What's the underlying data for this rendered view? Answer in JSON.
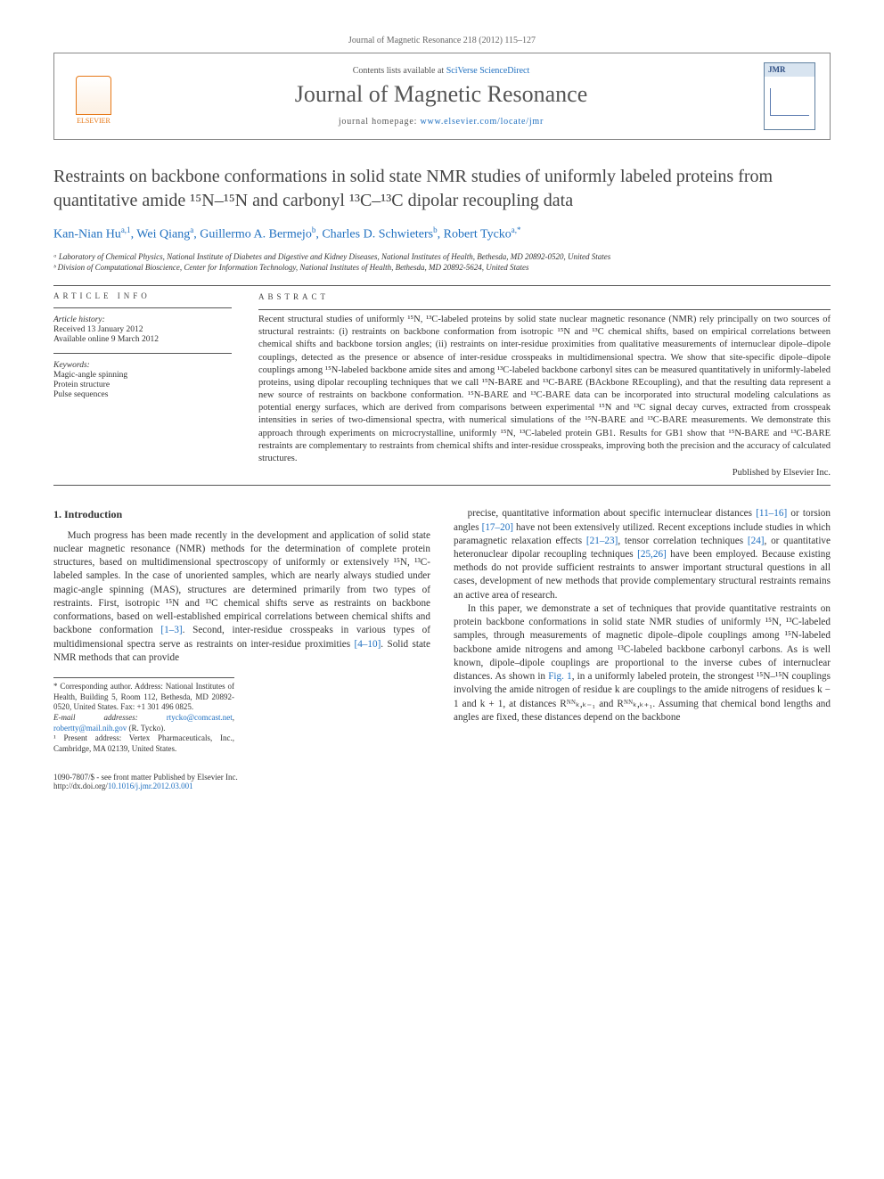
{
  "citation": "Journal of Magnetic Resonance 218 (2012) 115–127",
  "header": {
    "contents_prefix": "Contents lists available at ",
    "contents_link": "SciVerse ScienceDirect",
    "journal": "Journal of Magnetic Resonance",
    "homepage_prefix": "journal homepage: ",
    "homepage_link": "www.elsevier.com/locate/jmr",
    "publisher_label": "ELSEVIER"
  },
  "article": {
    "title": "Restraints on backbone conformations in solid state NMR studies of uniformly labeled proteins from quantitative amide ¹⁵N–¹⁵N and carbonyl ¹³C–¹³C dipolar recoupling data",
    "authors_html": "Kan-Nian Hu<sup>a,1</sup>, Wei Qiang<sup>a</sup>, Guillermo A. Bermejo<sup>b</sup>, Charles D. Schwieters<sup>b</sup>, Robert Tycko<sup>a,*</sup>",
    "affiliations": [
      "ᵃ Laboratory of Chemical Physics, National Institute of Diabetes and Digestive and Kidney Diseases, National Institutes of Health, Bethesda, MD 20892-0520, United States",
      "ᵇ Division of Computational Bioscience, Center for Information Technology, National Institutes of Health, Bethesda, MD 20892-5624, United States"
    ]
  },
  "info": {
    "label": "ARTICLE INFO",
    "history_label": "Article history:",
    "received": "Received 13 January 2012",
    "online": "Available online 9 March 2012",
    "keywords_label": "Keywords:",
    "keywords": [
      "Magic-angle spinning",
      "Protein structure",
      "Pulse sequences"
    ]
  },
  "abstract": {
    "label": "ABSTRACT",
    "text": "Recent structural studies of uniformly ¹⁵N, ¹³C-labeled proteins by solid state nuclear magnetic resonance (NMR) rely principally on two sources of structural restraints: (i) restraints on backbone conformation from isotropic ¹⁵N and ¹³C chemical shifts, based on empirical correlations between chemical shifts and backbone torsion angles; (ii) restraints on inter-residue proximities from qualitative measurements of internuclear dipole–dipole couplings, detected as the presence or absence of inter-residue crosspeaks in multidimensional spectra. We show that site-specific dipole–dipole couplings among ¹⁵N-labeled backbone amide sites and among ¹³C-labeled backbone carbonyl sites can be measured quantitatively in uniformly-labeled proteins, using dipolar recoupling techniques that we call ¹⁵N-BARE and ¹³C-BARE (BAckbone REcoupling), and that the resulting data represent a new source of restraints on backbone conformation. ¹⁵N-BARE and ¹³C-BARE data can be incorporated into structural modeling calculations as potential energy surfaces, which are derived from comparisons between experimental ¹⁵N and ¹³C signal decay curves, extracted from crosspeak intensities in series of two-dimensional spectra, with numerical simulations of the ¹⁵N-BARE and ¹³C-BARE measurements. We demonstrate this approach through experiments on microcrystalline, uniformly ¹⁵N, ¹³C-labeled protein GB1. Results for GB1 show that ¹⁵N-BARE and ¹³C-BARE restraints are complementary to restraints from chemical shifts and inter-residue crosspeaks, improving both the precision and the accuracy of calculated structures.",
    "publisher": "Published by Elsevier Inc."
  },
  "body": {
    "section_heading": "1. Introduction",
    "para1": "Much progress has been made recently in the development and application of solid state nuclear magnetic resonance (NMR) methods for the determination of complete protein structures, based on multidimensional spectroscopy of uniformly or extensively ¹⁵N, ¹³C-labeled samples. In the case of unoriented samples, which are nearly always studied under magic-angle spinning (MAS), structures are determined primarily from two types of restraints. First, isotropic ¹⁵N and ¹³C chemical shifts serve as restraints on backbone conformations, based on well-established empirical correlations between chemical shifts and backbone conformation [1–3]. Second, inter-residue crosspeaks in various types of multidimensional spectra serve as restraints on inter-residue proximities [4–10]. Solid state NMR methods that can provide",
    "para2a": "precise, quantitative information about specific internuclear distances [11–16] or torsion angles [17–20] have not been extensively utilized. Recent exceptions include studies in which paramagnetic relaxation effects [21–23], tensor correlation techniques [24], or quantitative heteronuclear dipolar recoupling techniques [25,26] have been employed. Because existing methods do not provide sufficient restraints to answer important structural questions in all cases, development of new methods that provide complementary structural restraints remains an active area of research.",
    "para2b": "In this paper, we demonstrate a set of techniques that provide quantitative restraints on protein backbone conformations in solid state NMR studies of uniformly ¹⁵N, ¹³C-labeled samples, through measurements of magnetic dipole–dipole couplings among ¹⁵N-labeled backbone amide nitrogens and among ¹³C-labeled backbone carbonyl carbons. As is well known, dipole–dipole couplings are proportional to the inverse cubes of internuclear distances. As shown in Fig. 1, in a uniformly labeled protein, the strongest ¹⁵N–¹⁵N couplings involving the amide nitrogen of residue k are couplings to the amide nitrogens of residues k − 1 and k + 1, at distances Rᴺᴺₖ,ₖ₋₁ and Rᴺᴺₖ,ₖ₊₁. Assuming that chemical bond lengths and angles are fixed, these distances depend on the backbone",
    "refs": {
      "r1": "[1–3]",
      "r2": "[4–10]",
      "r3": "[11–16]",
      "r4": "[17–20]",
      "r5": "[21–23]",
      "r6": "[24]",
      "r7": "[25,26]",
      "fig": "Fig. 1"
    }
  },
  "footnotes": {
    "corr": "* Corresponding author. Address: National Institutes of Health, Building 5, Room 112, Bethesda, MD 20892-0520, United States. Fax: +1 301 496 0825.",
    "email_label": "E-mail addresses: ",
    "email1": "rtycko@comcast.net",
    "email2": "robertty@mail.nih.gov",
    "email_suffix": " (R. Tycko).",
    "present": "¹ Present address: Vertex Pharmaceuticals, Inc., Cambridge, MA 02139, United States."
  },
  "bottom": {
    "issn": "1090-7807/$ - see front matter Published by Elsevier Inc.",
    "doi_label": "http://dx.doi.org/",
    "doi": "10.1016/j.jmr.2012.03.001"
  },
  "colors": {
    "link": "#2070c0",
    "accent": "#e67817",
    "rule": "#555555",
    "text": "#333333"
  }
}
